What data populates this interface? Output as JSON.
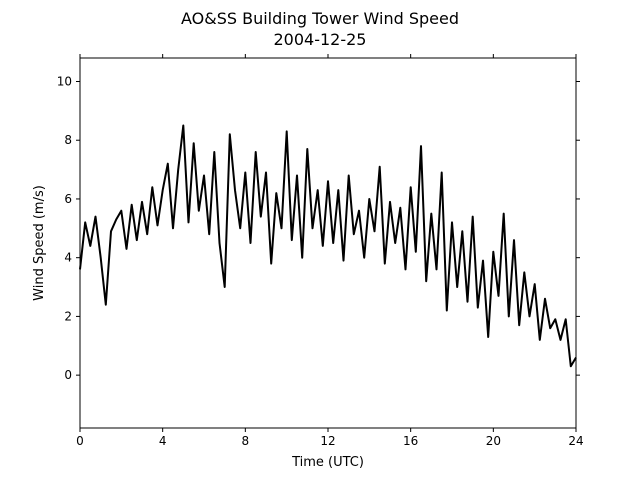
{
  "figure": {
    "title_line1": "AO&SS Building Tower Wind Speed",
    "title_line2": "2004-12-25"
  },
  "chart_data": {
    "type": "line",
    "title": "AO&SS Building Tower Wind Speed\n2004-12-25",
    "xlabel": "Time (UTC)",
    "ylabel": "Wind Speed (m/s)",
    "xlim": [
      0,
      24
    ],
    "ylim": [
      -1.8,
      10.8
    ],
    "xticks": [
      0,
      4,
      8,
      12,
      16,
      20,
      24
    ],
    "xtick_labels": [
      "0",
      "4",
      "8",
      "12",
      "16",
      "20",
      "24"
    ],
    "yticks": [
      0,
      2,
      4,
      6,
      8,
      10
    ],
    "ytick_labels": [
      "0",
      "2",
      "4",
      "6",
      "8",
      "10"
    ],
    "grid": false,
    "line_color": "#000000",
    "series": [
      {
        "x": [
          0.0,
          0.25,
          0.5,
          0.75,
          1.0,
          1.25,
          1.5,
          1.75,
          2.0,
          2.25,
          2.5,
          2.75,
          3.0,
          3.25,
          3.5,
          3.75,
          4.0,
          4.25,
          4.5,
          4.75,
          5.0,
          5.25,
          5.5,
          5.75,
          6.0,
          6.25,
          6.5,
          6.75,
          7.0,
          7.25,
          7.5,
          7.75,
          8.0,
          8.25,
          8.5,
          8.75,
          9.0,
          9.25,
          9.5,
          9.75,
          10.0,
          10.25,
          10.5,
          10.75,
          11.0,
          11.25,
          11.5,
          11.75,
          12.0,
          12.25,
          12.5,
          12.75,
          13.0,
          13.25,
          13.5,
          13.75,
          14.0,
          14.25,
          14.5,
          14.75,
          15.0,
          15.25,
          15.5,
          15.75,
          16.0,
          16.25,
          16.5,
          16.75,
          17.0,
          17.25,
          17.5,
          17.75,
          18.0,
          18.25,
          18.5,
          18.75,
          19.0,
          19.25,
          19.5,
          19.75,
          20.0,
          20.25,
          20.5,
          20.75,
          21.0,
          21.25,
          21.5,
          21.75,
          22.0,
          22.25,
          22.5,
          22.75,
          23.0,
          23.25,
          23.5,
          23.75,
          24.0
        ],
        "values": [
          3.6,
          5.2,
          4.4,
          5.4,
          4.0,
          2.4,
          4.9,
          5.3,
          5.6,
          4.3,
          5.8,
          4.6,
          5.9,
          4.8,
          6.4,
          5.1,
          6.3,
          7.2,
          5.0,
          7.0,
          8.5,
          5.2,
          7.9,
          5.6,
          6.8,
          4.8,
          7.6,
          4.5,
          3.0,
          8.2,
          6.3,
          5.0,
          6.9,
          4.5,
          7.6,
          5.4,
          6.9,
          3.8,
          6.2,
          5.0,
          8.3,
          4.6,
          6.8,
          4.0,
          7.7,
          5.0,
          6.3,
          4.4,
          6.6,
          4.5,
          6.3,
          3.9,
          6.8,
          4.8,
          5.6,
          4.0,
          6.0,
          4.9,
          7.1,
          3.8,
          5.9,
          4.5,
          5.7,
          3.6,
          6.4,
          4.2,
          7.8,
          3.2,
          5.5,
          3.6,
          6.9,
          2.2,
          5.2,
          3.0,
          4.9,
          2.5,
          5.4,
          2.3,
          3.9,
          1.3,
          4.2,
          2.7,
          5.5,
          2.0,
          4.6,
          1.7,
          3.5,
          2.0,
          3.1,
          1.2,
          2.6,
          1.6,
          1.9,
          1.2,
          1.9,
          0.3,
          0.6
        ]
      }
    ]
  }
}
